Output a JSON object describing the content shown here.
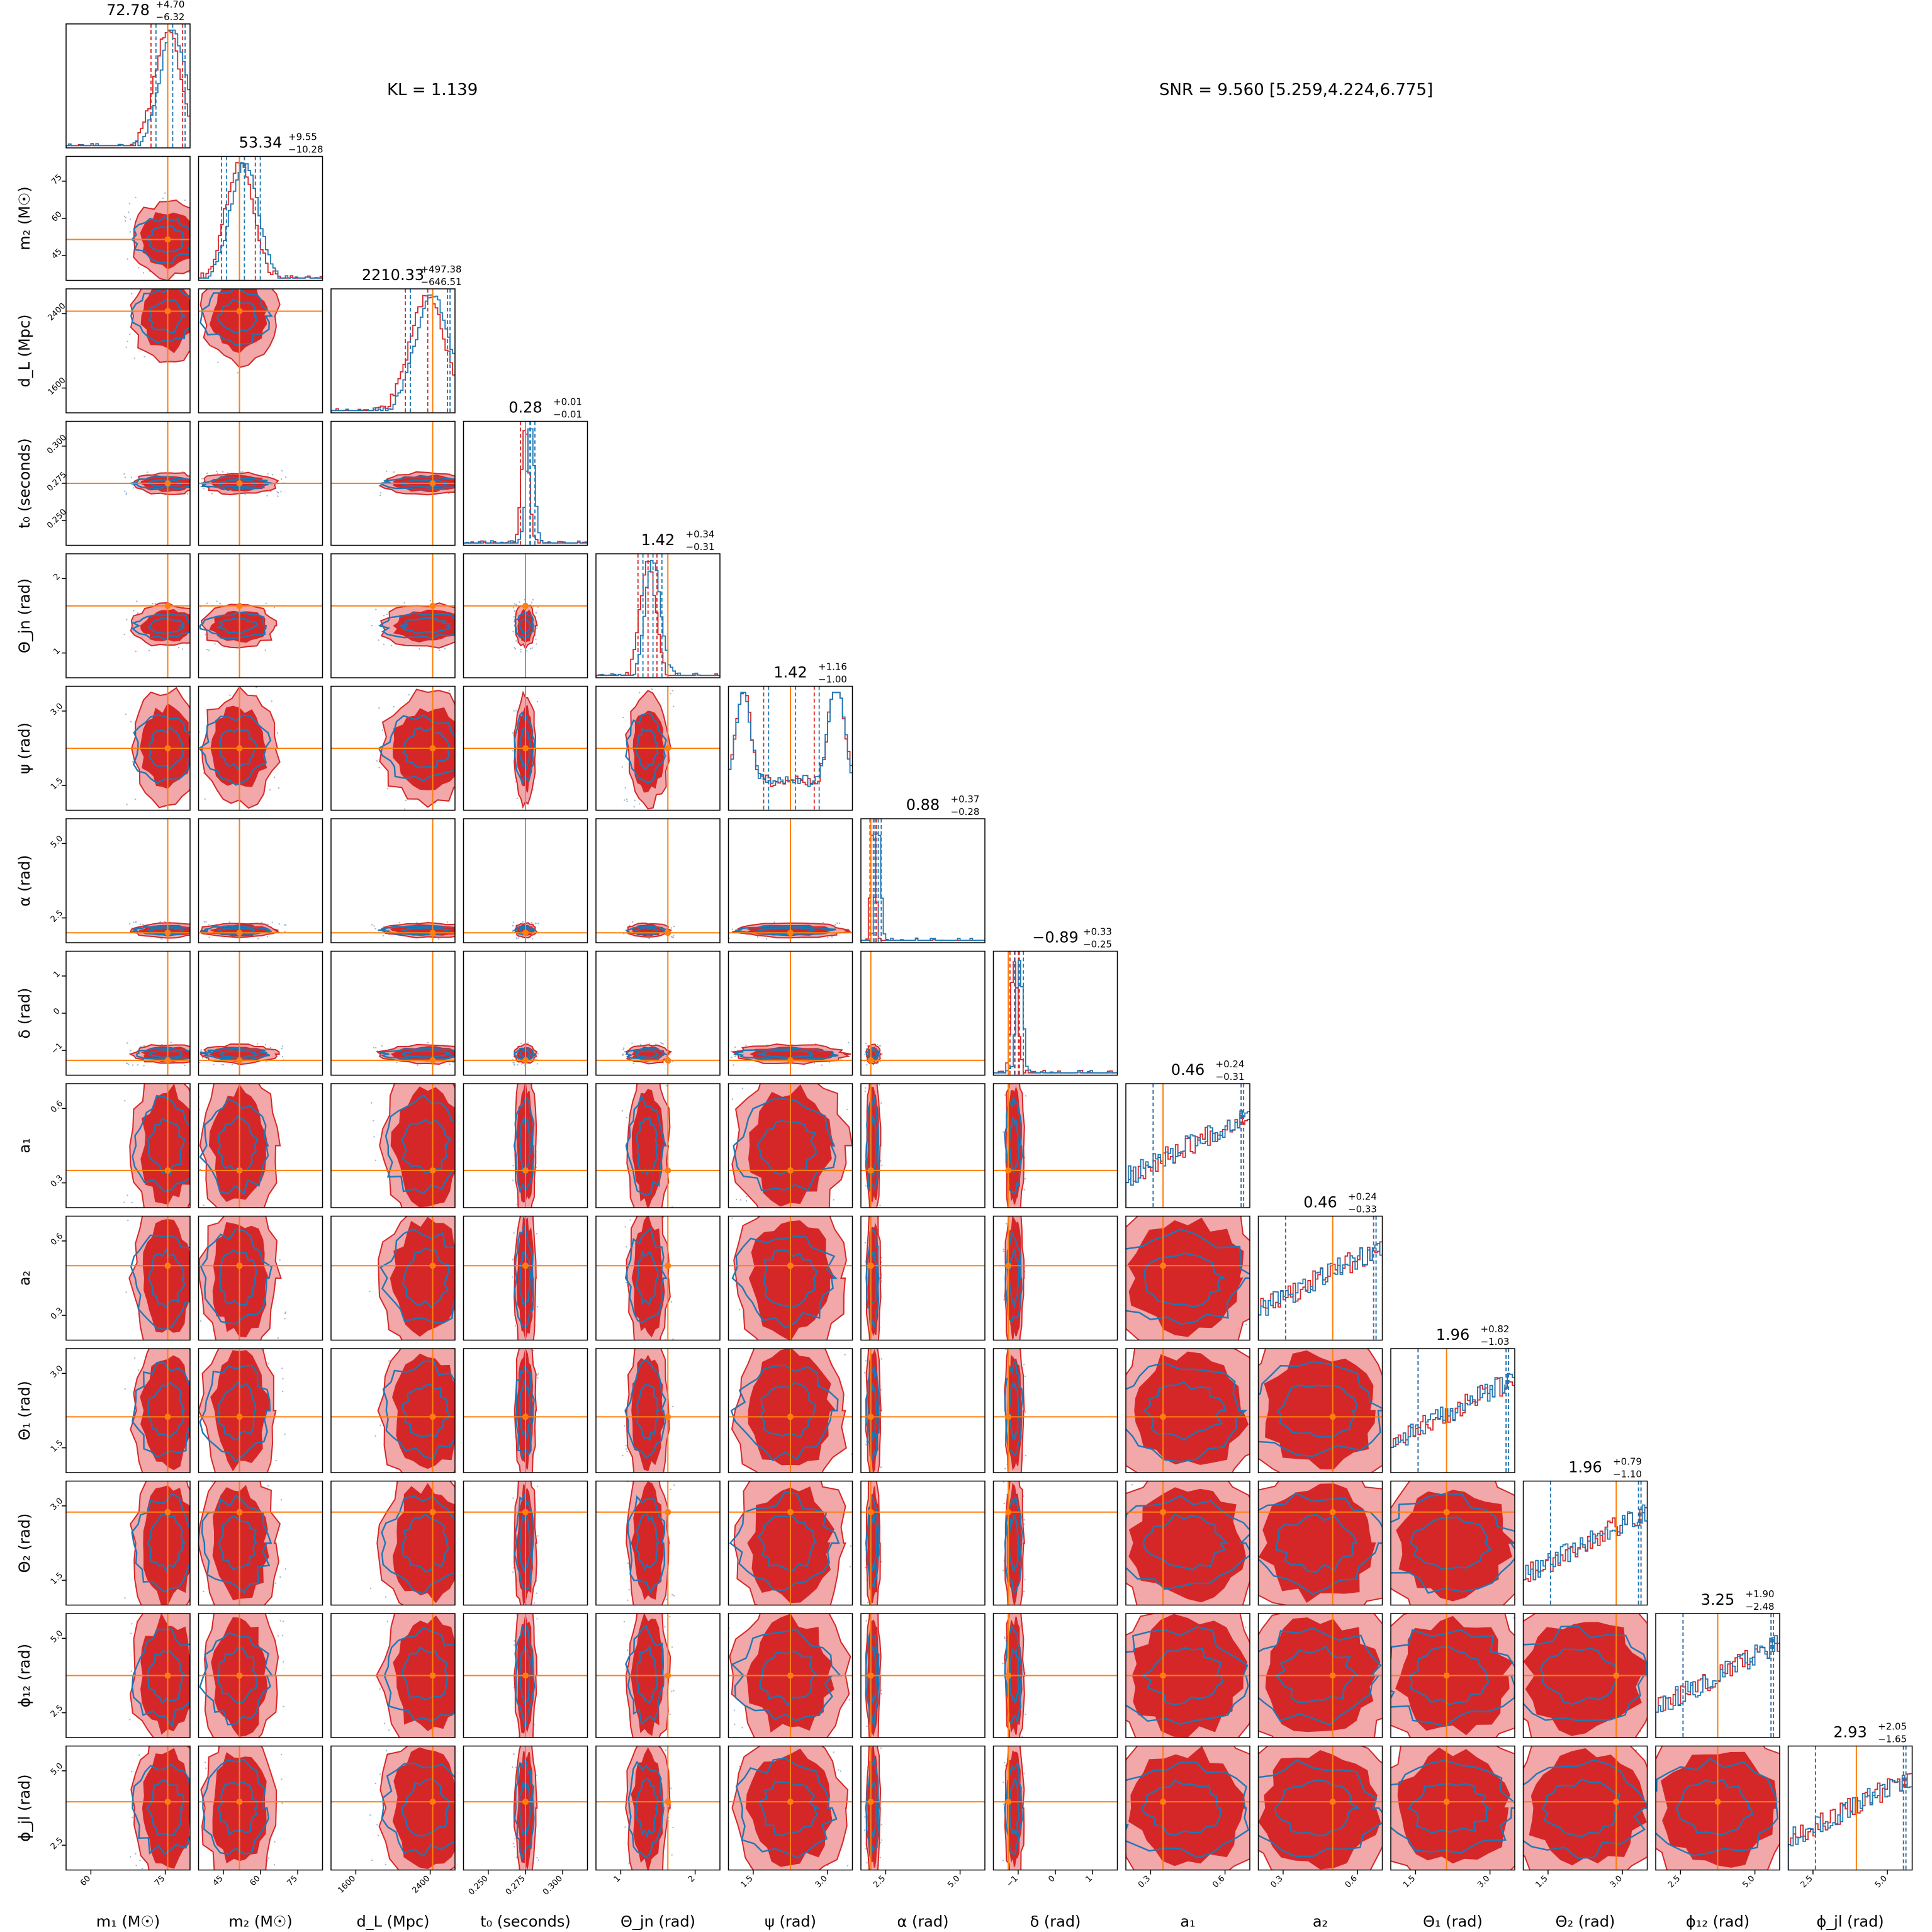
{
  "figure": {
    "kl_text": "KL = 1.139",
    "snr_text": "SNR = 9.560 [5.259,4.224,6.775]"
  },
  "colors": {
    "reference_blue": "#1f77b4",
    "posterior_red": "#d62728",
    "posterior_red_light": "#f2a7a8",
    "truth_orange": "#ff7f0e",
    "frame": "#000000"
  },
  "chart_data": {
    "type": "corner",
    "grid": false,
    "params": [
      {
        "key": "m1",
        "label": "m₁ (M☉)",
        "ticks": [
          "60",
          "75"
        ],
        "title": "72.78",
        "plus": "+4.70",
        "minus": "−6.32"
      },
      {
        "key": "m2",
        "label": "m₂ (M☉)",
        "ticks": [
          "45",
          "60",
          "75"
        ],
        "title": "53.34",
        "plus": "+9.55",
        "minus": "−10.28"
      },
      {
        "key": "dL",
        "label": "d_L (Mpc)",
        "ticks": [
          "1600",
          "2400"
        ],
        "title": "2210.33",
        "plus": "+497.38",
        "minus": "−646.51"
      },
      {
        "key": "t0",
        "label": "t₀ (seconds)",
        "ticks": [
          "0.250",
          "0.275",
          "0.300"
        ],
        "title": "0.28",
        "plus": "+0.01",
        "minus": "−0.01"
      },
      {
        "key": "thetajn",
        "label": "Θ_jn (rad)",
        "ticks": [
          "1",
          "2"
        ],
        "title": "1.42",
        "plus": "+0.34",
        "minus": "−0.31"
      },
      {
        "key": "psi",
        "label": "ψ (rad)",
        "ticks": [
          "1.5",
          "3.0"
        ],
        "title": "1.42",
        "plus": "+1.16",
        "minus": "−1.00"
      },
      {
        "key": "alpha",
        "label": "α (rad)",
        "ticks": [
          "2.5",
          "5.0"
        ],
        "title": "0.88",
        "plus": "+0.37",
        "minus": "−0.28"
      },
      {
        "key": "delta",
        "label": "δ (rad)",
        "ticks": [
          "−1",
          "0",
          "1"
        ],
        "title": "−0.89",
        "plus": "+0.33",
        "minus": "−0.25"
      },
      {
        "key": "a1",
        "label": "a₁",
        "ticks": [
          "0.3",
          "0.6"
        ],
        "title": "0.46",
        "plus": "+0.24",
        "minus": "−0.31"
      },
      {
        "key": "a2",
        "label": "a₂",
        "ticks": [
          "0.3",
          "0.6"
        ],
        "title": "0.46",
        "plus": "+0.24",
        "minus": "−0.33"
      },
      {
        "key": "theta1",
        "label": "Θ₁ (rad)",
        "ticks": [
          "1.5",
          "3.0"
        ],
        "title": "1.96",
        "plus": "+0.82",
        "minus": "−1.03"
      },
      {
        "key": "theta2",
        "label": "Θ₂ (rad)",
        "ticks": [
          "1.5",
          "3.0"
        ],
        "title": "1.96",
        "plus": "+0.79",
        "minus": "−1.10"
      },
      {
        "key": "phi12",
        "label": "ϕ₁₂ (rad)",
        "ticks": [
          "2.5",
          "5.0"
        ],
        "title": "3.25",
        "plus": "+1.90",
        "minus": "−2.48"
      },
      {
        "key": "phijl",
        "label": "ϕ_jl (rad)",
        "ticks": [
          "2.5",
          "5.0"
        ],
        "title": "2.93",
        "plus": "+2.05",
        "minus": "−1.65"
      }
    ]
  }
}
